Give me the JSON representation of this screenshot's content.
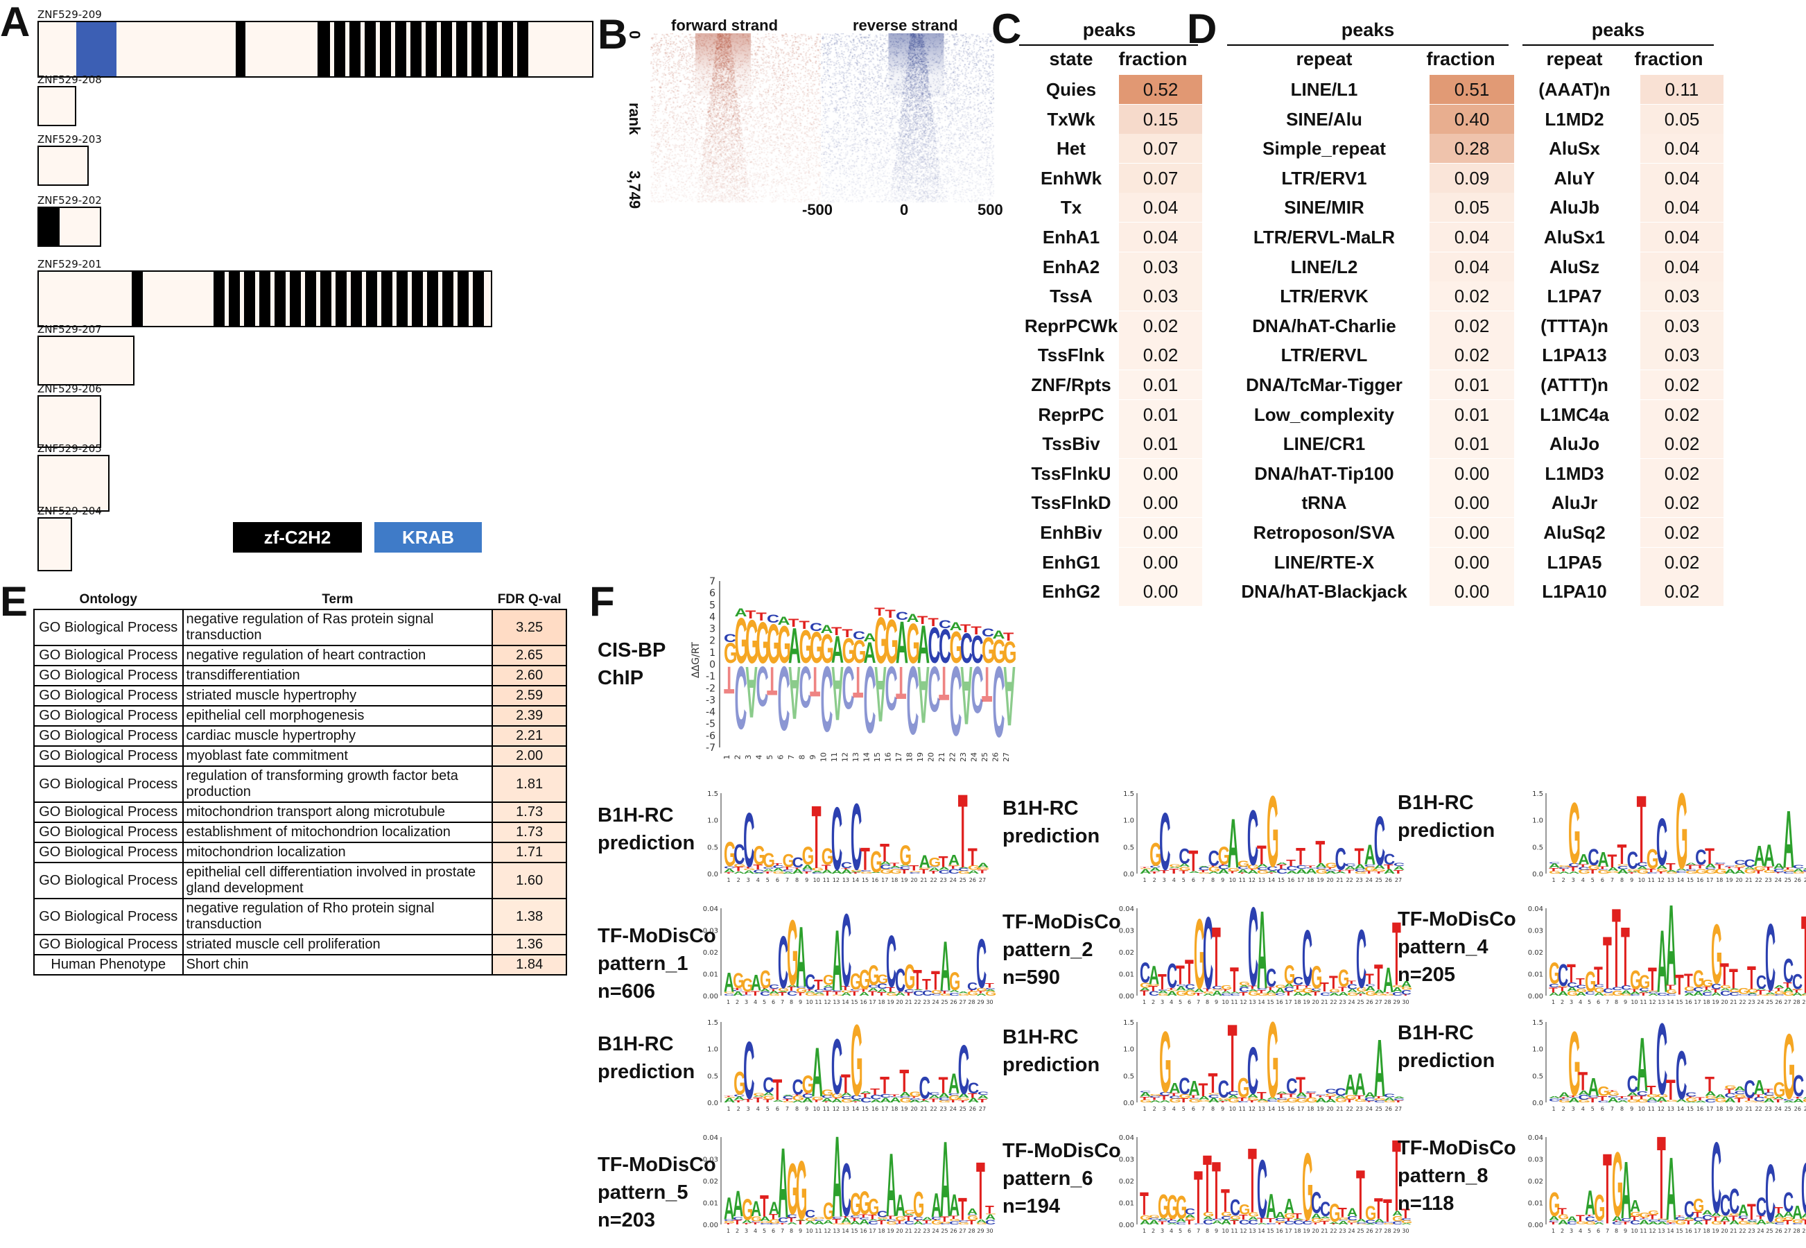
{
  "panels": {
    "A": "A",
    "B": "B",
    "C": "C",
    "D": "D",
    "E": "E",
    "F": "F"
  },
  "panelA": {
    "transcripts": [
      "ZNF529-209",
      "ZNF529-208",
      "ZNF529-203",
      "ZNF529-202",
      "ZNF529-201",
      "ZNF529-207",
      "ZNF529-206",
      "ZNF529-205",
      "ZNF529-204"
    ],
    "legend": {
      "zf": "zf-C2H2",
      "krab": "KRAB"
    },
    "colors": {
      "zf": "#000000",
      "krab": "#3c5fb4",
      "exon": "#fff7f1"
    }
  },
  "panelB": {
    "forward": "forward strand",
    "reverse": "reverse strand",
    "ylabel": "rank",
    "ytick_top": "0",
    "ytick_bottom": "3,749",
    "xticks": [
      "-500",
      "0",
      "500"
    ],
    "colors": {
      "forward": "#b5523b",
      "reverse": "#2c3e8c"
    }
  },
  "panelC": {
    "title": "peaks",
    "col_state": "state",
    "col_fraction": "fraction",
    "rows": [
      {
        "state": "Quies",
        "fraction": "0.52"
      },
      {
        "state": "TxWk",
        "fraction": "0.15"
      },
      {
        "state": "Het",
        "fraction": "0.07"
      },
      {
        "state": "EnhWk",
        "fraction": "0.07"
      },
      {
        "state": "Tx",
        "fraction": "0.04"
      },
      {
        "state": "EnhA1",
        "fraction": "0.04"
      },
      {
        "state": "EnhA2",
        "fraction": "0.03"
      },
      {
        "state": "TssA",
        "fraction": "0.03"
      },
      {
        "state": "ReprPCWk",
        "fraction": "0.02"
      },
      {
        "state": "TssFlnk",
        "fraction": "0.02"
      },
      {
        "state": "ZNF/Rpts",
        "fraction": "0.01"
      },
      {
        "state": "ReprPC",
        "fraction": "0.01"
      },
      {
        "state": "TssBiv",
        "fraction": "0.01"
      },
      {
        "state": "TssFlnkU",
        "fraction": "0.00"
      },
      {
        "state": "TssFlnkD",
        "fraction": "0.00"
      },
      {
        "state": "EnhBiv",
        "fraction": "0.00"
      },
      {
        "state": "EnhG1",
        "fraction": "0.00"
      },
      {
        "state": "EnhG2",
        "fraction": "0.00"
      }
    ]
  },
  "panelD": {
    "title": "peaks",
    "col_repeat": "repeat",
    "col_fraction": "fraction",
    "rows": [
      {
        "repeat": "LINE/L1",
        "fraction": "0.51"
      },
      {
        "repeat": "SINE/Alu",
        "fraction": "0.40"
      },
      {
        "repeat": "Simple_repeat",
        "fraction": "0.28"
      },
      {
        "repeat": "LTR/ERV1",
        "fraction": "0.09"
      },
      {
        "repeat": "SINE/MIR",
        "fraction": "0.05"
      },
      {
        "repeat": "LTR/ERVL-MaLR",
        "fraction": "0.04"
      },
      {
        "repeat": "LINE/L2",
        "fraction": "0.04"
      },
      {
        "repeat": "LTR/ERVK",
        "fraction": "0.02"
      },
      {
        "repeat": "DNA/hAT-Charlie",
        "fraction": "0.02"
      },
      {
        "repeat": "LTR/ERVL",
        "fraction": "0.02"
      },
      {
        "repeat": "DNA/TcMar-Tigger",
        "fraction": "0.01"
      },
      {
        "repeat": "Low_complexity",
        "fraction": "0.01"
      },
      {
        "repeat": "LINE/CR1",
        "fraction": "0.01"
      },
      {
        "repeat": "DNA/hAT-Tip100",
        "fraction": "0.00"
      },
      {
        "repeat": "tRNA",
        "fraction": "0.00"
      },
      {
        "repeat": "Retroposon/SVA",
        "fraction": "0.00"
      },
      {
        "repeat": "LINE/RTE-X",
        "fraction": "0.00"
      },
      {
        "repeat": "DNA/hAT-Blackjack",
        "fraction": "0.00"
      }
    ]
  },
  "panelD2": {
    "title": "peaks",
    "col_repeat": "repeat",
    "col_fraction": "fraction",
    "rows": [
      {
        "repeat": "(AAAT)n",
        "fraction": "0.11"
      },
      {
        "repeat": "L1MD2",
        "fraction": "0.05"
      },
      {
        "repeat": "AluSx",
        "fraction": "0.04"
      },
      {
        "repeat": "AluY",
        "fraction": "0.04"
      },
      {
        "repeat": "AluJb",
        "fraction": "0.04"
      },
      {
        "repeat": "AluSx1",
        "fraction": "0.04"
      },
      {
        "repeat": "AluSz",
        "fraction": "0.04"
      },
      {
        "repeat": "L1PA7",
        "fraction": "0.03"
      },
      {
        "repeat": "(TTTA)n",
        "fraction": "0.03"
      },
      {
        "repeat": "L1PA13",
        "fraction": "0.03"
      },
      {
        "repeat": "(ATTT)n",
        "fraction": "0.02"
      },
      {
        "repeat": "L1MC4a",
        "fraction": "0.02"
      },
      {
        "repeat": "AluJo",
        "fraction": "0.02"
      },
      {
        "repeat": "L1MD3",
        "fraction": "0.02"
      },
      {
        "repeat": "AluJr",
        "fraction": "0.02"
      },
      {
        "repeat": "AluSq2",
        "fraction": "0.02"
      },
      {
        "repeat": "L1PA5",
        "fraction": "0.02"
      },
      {
        "repeat": "L1PA10",
        "fraction": "0.02"
      }
    ]
  },
  "panelE": {
    "headers": [
      "Ontology",
      "Term",
      "FDR Q-val"
    ],
    "rows": [
      {
        "ontology": "GO Biological Process",
        "term": "negative regulation of Ras protein signal transduction",
        "q": "3.25"
      },
      {
        "ontology": "GO Biological Process",
        "term": "negative regulation of heart contraction",
        "q": "2.65"
      },
      {
        "ontology": "GO Biological Process",
        "term": "transdifferentiation",
        "q": "2.60"
      },
      {
        "ontology": "GO Biological Process",
        "term": "striated muscle hypertrophy",
        "q": "2.59"
      },
      {
        "ontology": "GO Biological Process",
        "term": "epithelial cell morphogenesis",
        "q": "2.39"
      },
      {
        "ontology": "GO Biological Process",
        "term": "cardiac muscle hypertrophy",
        "q": "2.21"
      },
      {
        "ontology": "GO Biological Process",
        "term": "myoblast fate commitment",
        "q": "2.00"
      },
      {
        "ontology": "GO Biological Process",
        "term": "regulation of transforming growth factor beta production",
        "q": "1.81"
      },
      {
        "ontology": "GO Biological Process",
        "term": "mitochondrion transport along microtubule",
        "q": "1.73"
      },
      {
        "ontology": "GO Biological Process",
        "term": "establishment of mitochondrion localization",
        "q": "1.73"
      },
      {
        "ontology": "GO Biological Process",
        "term": "mitochondrion localization",
        "q": "1.71"
      },
      {
        "ontology": "GO Biological Process",
        "term": "epithelial cell differentiation involved in prostate gland development",
        "q": "1.60"
      },
      {
        "ontology": "GO Biological Process",
        "term": "negative regulation of Rho protein signal transduction",
        "q": "1.38"
      },
      {
        "ontology": "GO Biological Process",
        "term": "striated muscle cell proliferation",
        "q": "1.36"
      },
      {
        "ontology": "Human Phenotype",
        "term": "Short chin",
        "q": "1.84"
      }
    ]
  },
  "panelF": {
    "cis_label_1": "CIS-BP",
    "cis_label_2": "ChIP",
    "cis_ylabel": "ΔΔG/RT",
    "cis_yticks": [
      "7",
      "6",
      "5",
      "4",
      "3",
      "2",
      "1",
      "0",
      "-1",
      "-2",
      "-3",
      "-4",
      "-5",
      "-6",
      "-7"
    ],
    "b1h_1": "B1H-RC",
    "b1h_2": "prediction",
    "modisco": [
      {
        "name": "TF-MoDisCo",
        "pattern": "pattern_1",
        "n": "n=606"
      },
      {
        "name": "TF-MoDisCo",
        "pattern": "pattern_2",
        "n": "n=590"
      },
      {
        "name": "TF-MoDisCo",
        "pattern": "pattern_4",
        "n": "n=205"
      },
      {
        "name": "TF-MoDisCo",
        "pattern": "pattern_5",
        "n": "n=203"
      },
      {
        "name": "TF-MoDisCo",
        "pattern": "pattern_6",
        "n": "n=194"
      },
      {
        "name": "TF-MoDisCo",
        "pattern": "pattern_8",
        "n": "n=118"
      }
    ],
    "b1h_yticks": [
      "1.5",
      "1.0",
      "0.5",
      "0.0"
    ],
    "colors": {
      "A": "#2ca02c",
      "C": "#2c40b0",
      "G": "#f5a623",
      "T": "#e0201e"
    }
  }
}
